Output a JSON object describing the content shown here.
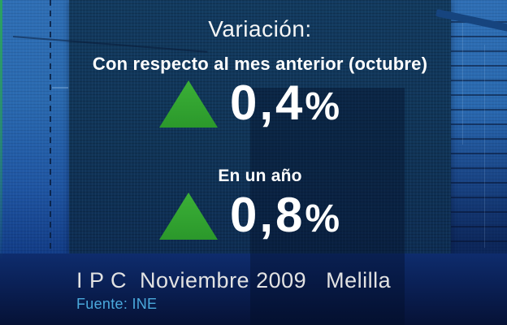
{
  "header": {
    "title": "Variación:"
  },
  "monthly": {
    "label": "Con respecto al mes anterior (octubre)",
    "value": "0,4",
    "unit": "%",
    "direction": "up"
  },
  "yearly": {
    "label": "En un año",
    "value": "0,8",
    "unit": "%",
    "direction": "up"
  },
  "footer": {
    "title": "I P C  Noviembre 2009   Melilla",
    "source": "Fuente: INE"
  },
  "icons": {
    "monthly": "up-triangle-icon",
    "yearly": "up-triangle-icon"
  },
  "colors": {
    "up_green": "#2fa42f",
    "background_blue": "#2a6ab0",
    "panel_navy": "#103457",
    "bottom_band_navy": "#0a2055",
    "text_white": "#f5f5f5",
    "source_text_blue": "#4aa9dc"
  },
  "chart_data": {
    "type": "table",
    "title": "Variación:",
    "categories": [
      "Con respecto al mes anterior (octubre)",
      "En un año"
    ],
    "values": [
      0.4,
      0.8
    ],
    "value_labels": [
      "0,4%",
      "0,8%"
    ],
    "directions": [
      "up",
      "up"
    ],
    "footer": "I P C  Noviembre 2009   Melilla",
    "source": "Fuente: INE"
  }
}
